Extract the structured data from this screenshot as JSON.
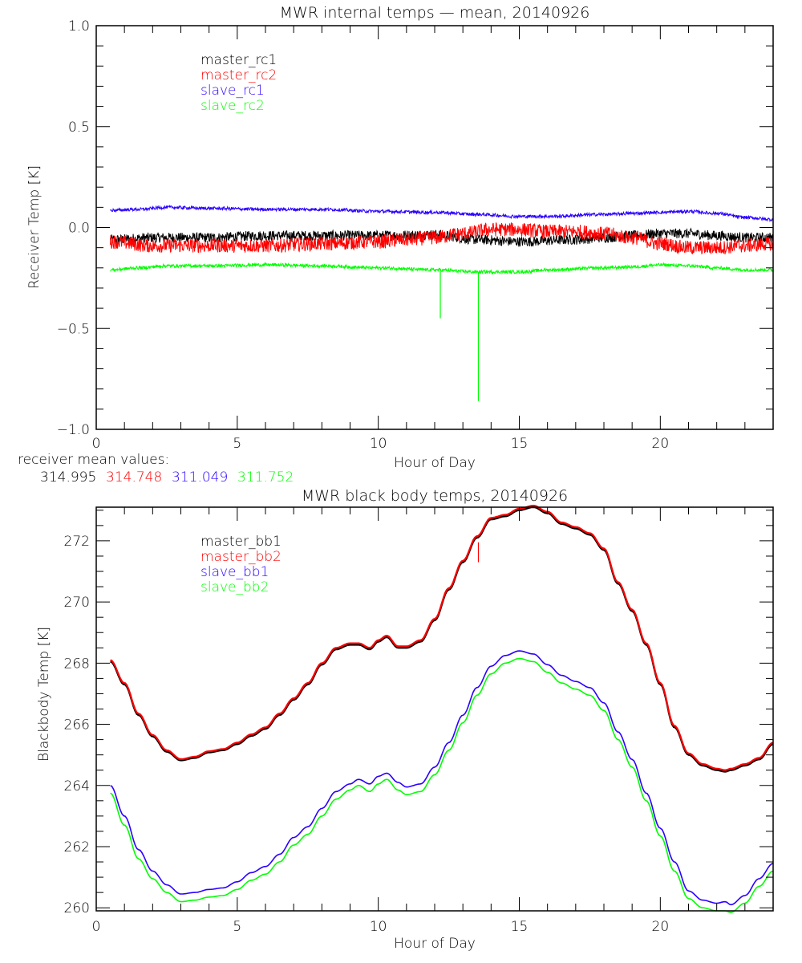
{
  "chart_data": [
    {
      "type": "line",
      "title": "MWR internal temps — mean, 20140926",
      "xlabel": "Hour of Day",
      "ylabel": "Receiver Temp [K]",
      "xlim": [
        0,
        24
      ],
      "ylim": [
        -1.0,
        1.0
      ],
      "x_ticks": [
        0,
        5,
        10,
        15,
        20
      ],
      "x_tick_labels": [
        "0",
        "5",
        "10",
        "15",
        "20"
      ],
      "x_minor_step": 1,
      "y_ticks": [
        -1.0,
        -0.5,
        0.0,
        0.5,
        1.0
      ],
      "y_tick_labels": [
        "−1.0",
        "−0.5",
        "0.0",
        "0.5",
        "1.0"
      ],
      "y_minor_step": 0.1,
      "grid": false,
      "legend_position": "top-left",
      "noisy": true,
      "series": [
        {
          "name": "master_rc1",
          "color": "#000000",
          "noise": 0.025,
          "x": [
            0.5,
            2,
            4,
            6,
            8,
            10,
            12,
            13.5,
            15,
            17,
            18,
            19,
            20,
            21,
            22,
            23,
            24
          ],
          "y": [
            -0.06,
            -0.05,
            -0.05,
            -0.04,
            -0.04,
            -0.04,
            -0.035,
            -0.06,
            -0.07,
            -0.06,
            -0.05,
            -0.04,
            -0.03,
            -0.03,
            -0.04,
            -0.05,
            -0.05
          ]
        },
        {
          "name": "master_rc2",
          "color": "#ff0000",
          "noise": 0.035,
          "x": [
            0.5,
            2,
            4,
            6,
            8,
            10,
            11,
            12,
            13,
            14,
            15,
            16,
            17,
            18,
            19,
            20,
            21,
            22,
            23,
            24
          ],
          "y": [
            -0.07,
            -0.09,
            -0.09,
            -0.09,
            -0.08,
            -0.07,
            -0.06,
            -0.05,
            -0.03,
            -0.01,
            -0.01,
            -0.02,
            -0.02,
            -0.03,
            -0.05,
            -0.08,
            -0.1,
            -0.1,
            -0.09,
            -0.08
          ]
        },
        {
          "name": "slave_rc1",
          "color": "#2a00ff",
          "noise": 0.008,
          "x": [
            0.5,
            1.5,
            2.5,
            4,
            6,
            8,
            10,
            12,
            13.5,
            15,
            16,
            18,
            19,
            20,
            21,
            22,
            23,
            24
          ],
          "y": [
            0.085,
            0.09,
            0.1,
            0.095,
            0.09,
            0.09,
            0.08,
            0.075,
            0.065,
            0.055,
            0.055,
            0.065,
            0.07,
            0.075,
            0.08,
            0.07,
            0.05,
            0.04
          ]
        },
        {
          "name": "slave_rc2",
          "color": "#00ff00",
          "noise": 0.008,
          "x": [
            0.5,
            1.5,
            2.5,
            4,
            6,
            8,
            10,
            12,
            13.5,
            15,
            16,
            18,
            19,
            20,
            21,
            22,
            23,
            24
          ],
          "y": [
            -0.21,
            -0.2,
            -0.19,
            -0.19,
            -0.185,
            -0.19,
            -0.2,
            -0.21,
            -0.22,
            -0.22,
            -0.21,
            -0.2,
            -0.195,
            -0.185,
            -0.19,
            -0.2,
            -0.21,
            -0.21
          ]
        }
      ],
      "spikes": [
        {
          "series": "slave_rc2",
          "x": 12.2,
          "y": -0.45
        },
        {
          "series": "slave_rc2",
          "x": 13.55,
          "y": -0.86
        }
      ],
      "annotation": {
        "label": "receiver mean values:",
        "values": [
          {
            "text": "314.995",
            "color": "#000000"
          },
          {
            "text": "314.748",
            "color": "#ff0000"
          },
          {
            "text": "311.049",
            "color": "#2a00ff"
          },
          {
            "text": "311.752",
            "color": "#00ff00"
          }
        ]
      }
    },
    {
      "type": "line",
      "title": "MWR black body temps, 20140926",
      "xlabel": "Hour of Day",
      "ylabel": "Blackbody Temp [K]",
      "xlim": [
        0,
        24
      ],
      "ylim": [
        259.9,
        273.1
      ],
      "x_ticks": [
        0,
        5,
        10,
        15,
        20
      ],
      "x_tick_labels": [
        "0",
        "5",
        "10",
        "15",
        "20"
      ],
      "x_minor_step": 1,
      "y_ticks": [
        260,
        262,
        264,
        266,
        268,
        270,
        272
      ],
      "y_tick_labels": [
        "260",
        "262",
        "264",
        "266",
        "268",
        "270",
        "272"
      ],
      "y_minor_step": 0.5,
      "grid": false,
      "legend_position": "top-left",
      "series": [
        {
          "name": "master_bb1",
          "color": "#000000",
          "x": [
            0.5,
            1,
            1.5,
            2,
            2.5,
            3,
            3.5,
            4,
            4.5,
            5,
            5.5,
            6,
            6.5,
            7,
            7.5,
            8,
            8.5,
            9,
            9.3,
            9.7,
            10,
            10.3,
            10.7,
            11,
            11.5,
            12,
            12.5,
            13,
            13.5,
            14,
            14.5,
            15,
            15.5,
            16,
            16.5,
            17,
            17.5,
            18,
            18.5,
            19,
            19.5,
            20,
            20.5,
            21,
            21.5,
            22,
            22.3,
            22.5,
            23,
            23.5,
            24
          ],
          "y": [
            268.05,
            267.3,
            266.3,
            265.6,
            265.1,
            264.82,
            264.9,
            265.08,
            265.15,
            265.35,
            265.62,
            265.85,
            266.3,
            266.8,
            267.3,
            267.95,
            268.45,
            268.6,
            268.6,
            268.45,
            268.7,
            268.85,
            268.5,
            268.5,
            268.7,
            269.4,
            270.4,
            271.3,
            272.1,
            272.7,
            272.8,
            273.0,
            273.1,
            272.9,
            272.55,
            272.4,
            272.2,
            271.7,
            270.6,
            269.7,
            268.6,
            267.3,
            265.9,
            265.0,
            264.65,
            264.5,
            264.45,
            264.5,
            264.65,
            264.85,
            265.35
          ]
        },
        {
          "name": "master_bb2",
          "color": "#ff0000",
          "x": [
            0.5,
            1,
            1.5,
            2,
            2.5,
            3,
            3.5,
            4,
            4.5,
            5,
            5.5,
            6,
            6.5,
            7,
            7.5,
            8,
            8.5,
            9,
            9.3,
            9.7,
            10,
            10.3,
            10.7,
            11,
            11.5,
            12,
            12.5,
            13,
            13.5,
            14,
            14.5,
            15,
            15.5,
            16,
            16.5,
            17,
            17.5,
            18,
            18.5,
            19,
            19.5,
            20,
            20.5,
            21,
            21.5,
            22,
            22.3,
            22.5,
            23,
            23.5,
            24
          ],
          "y": [
            268.1,
            267.35,
            266.35,
            265.65,
            265.15,
            264.86,
            264.94,
            265.12,
            265.19,
            265.4,
            265.67,
            265.9,
            266.35,
            266.85,
            267.35,
            268.0,
            268.5,
            268.65,
            268.65,
            268.5,
            268.75,
            268.9,
            268.55,
            268.55,
            268.75,
            269.45,
            270.45,
            271.35,
            272.15,
            272.75,
            272.85,
            273.05,
            273.15,
            272.95,
            272.6,
            272.45,
            272.25,
            271.75,
            270.65,
            269.75,
            268.65,
            267.35,
            265.95,
            265.05,
            264.7,
            264.55,
            264.5,
            264.55,
            264.7,
            264.9,
            265.4
          ]
        },
        {
          "name": "slave_bb1",
          "color": "#2a00ff",
          "x": [
            0.5,
            1,
            1.5,
            2,
            2.5,
            3,
            3.5,
            4,
            4.5,
            5,
            5.5,
            6,
            6.5,
            7,
            7.5,
            8,
            8.5,
            9,
            9.3,
            9.7,
            10,
            10.3,
            10.7,
            11,
            11.5,
            12,
            12.5,
            13,
            13.5,
            14,
            14.5,
            15,
            15.5,
            16,
            16.5,
            17,
            17.5,
            18,
            18.5,
            19,
            19.5,
            20,
            20.5,
            21,
            21.5,
            22,
            22.3,
            22.5,
            23,
            23.5,
            24
          ],
          "y": [
            264.0,
            263.0,
            261.9,
            261.2,
            260.75,
            260.45,
            260.5,
            260.6,
            260.65,
            260.85,
            261.15,
            261.35,
            261.75,
            262.3,
            262.65,
            263.25,
            263.8,
            264.05,
            264.2,
            264.05,
            264.3,
            264.4,
            264.1,
            263.95,
            264.05,
            264.6,
            265.4,
            266.3,
            267.2,
            267.9,
            268.25,
            268.4,
            268.3,
            267.95,
            267.6,
            267.4,
            267.2,
            266.7,
            265.75,
            264.85,
            263.75,
            262.6,
            261.5,
            260.55,
            260.25,
            260.15,
            260.2,
            260.1,
            260.4,
            260.95,
            261.45
          ]
        },
        {
          "name": "slave_bb2",
          "color": "#00ff00",
          "x": [
            0.5,
            1,
            1.5,
            2,
            2.5,
            3,
            3.5,
            4,
            4.5,
            5,
            5.5,
            6,
            6.5,
            7,
            7.5,
            8,
            8.5,
            9,
            9.3,
            9.7,
            10,
            10.3,
            10.7,
            11,
            11.5,
            12,
            12.5,
            13,
            13.5,
            14,
            14.5,
            15,
            15.5,
            16,
            16.5,
            17,
            17.5,
            18,
            18.5,
            19,
            19.5,
            20,
            20.5,
            21,
            21.5,
            22,
            22.3,
            22.5,
            23,
            23.5,
            24
          ],
          "y": [
            263.75,
            262.7,
            261.6,
            260.95,
            260.5,
            260.2,
            260.25,
            260.35,
            260.4,
            260.6,
            260.9,
            261.1,
            261.5,
            262.05,
            262.4,
            263.0,
            263.55,
            263.85,
            264.0,
            263.8,
            264.05,
            264.2,
            263.85,
            263.7,
            263.8,
            264.35,
            265.15,
            266.05,
            266.95,
            267.65,
            268.0,
            268.15,
            268.05,
            267.7,
            267.35,
            267.15,
            266.95,
            266.45,
            265.5,
            264.6,
            263.5,
            262.35,
            261.2,
            260.3,
            260.0,
            259.9,
            259.9,
            259.85,
            260.15,
            260.7,
            261.2
          ]
        }
      ],
      "spikes": [
        {
          "series": "master_bb2",
          "x": 13.55,
          "y_from": 271.95,
          "y_to": 271.3
        }
      ]
    }
  ]
}
